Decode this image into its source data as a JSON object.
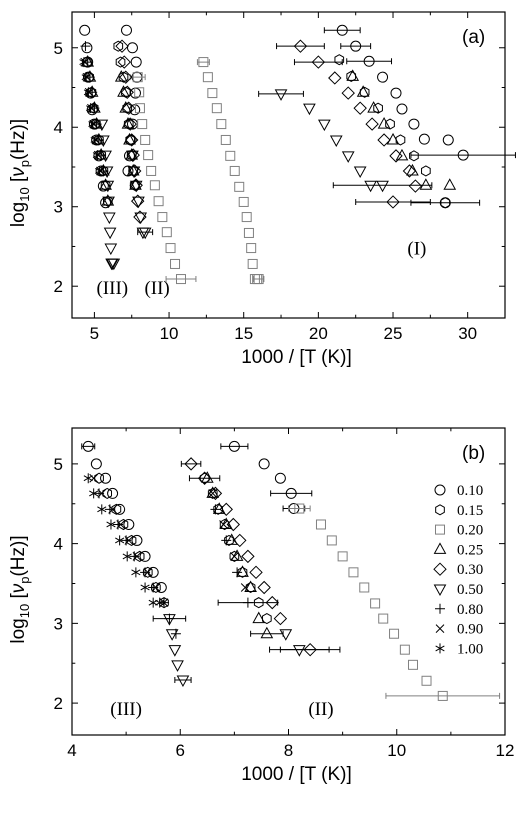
{
  "chart_data": [
    {
      "panel": "(a)",
      "type": "scatter",
      "xlabel": "1000 / [T (K)]",
      "ylabel_main": "log",
      "ylabel_sub": "10",
      "ylabel_rest": " [",
      "ylabel_nu": "ν",
      "ylabel_nu_sub": "p",
      "ylabel_unit": "(Hz)]",
      "xlim": [
        3.5,
        32.5
      ],
      "ylim": [
        1.6,
        5.45
      ],
      "xticks": [
        5,
        10,
        15,
        20,
        25,
        30
      ],
      "yticks": [
        2,
        3,
        4,
        5
      ],
      "annotations": [
        {
          "text": "(III)",
          "x": 6.2,
          "y": 1.9
        },
        {
          "text": "(II)",
          "x": 9.2,
          "y": 1.9
        },
        {
          "text": "(I)",
          "x": 26.6,
          "y": 2.4
        }
      ],
      "series": [
        {
          "marker": "circle",
          "color": "#000000",
          "x": [
            4.35,
            4.5,
            4.55,
            4.6,
            4.75,
            4.85,
            5.0,
            5.15,
            5.3,
            5.45,
            5.6,
            5.75
          ],
          "y": [
            5.22,
            5.0,
            4.82,
            4.63,
            4.43,
            4.22,
            4.04,
            3.84,
            3.64,
            3.45,
            3.26,
            3.05
          ]
        },
        {
          "marker": "circle",
          "color": "#000000",
          "x": [
            7.15,
            7.55,
            7.8,
            7.85,
            7.75,
            7.7,
            7.55,
            7.45,
            7.35,
            7.25
          ],
          "y": [
            5.22,
            5.0,
            4.82,
            4.63,
            4.43,
            4.22,
            4.04,
            3.84,
            3.64,
            3.45
          ]
        },
        {
          "marker": "circle",
          "color": "#000000",
          "x": [
            21.6,
            22.5,
            23.4,
            24.3,
            25.2,
            25.6,
            26.4,
            27.1,
            28.7,
            29.7,
            28.5
          ],
          "y": [
            5.22,
            5.02,
            4.83,
            4.63,
            4.43,
            4.23,
            4.04,
            3.85,
            3.84,
            3.65,
            3.05
          ],
          "xerr": [
            1.2,
            1.0,
            1.5,
            0,
            0,
            0,
            0,
            0,
            0,
            3.5,
            2.3
          ]
        },
        {
          "marker": "hexagon",
          "color": "#000000",
          "x": [
            4.5,
            4.65,
            4.8,
            4.95,
            5.1,
            5.3,
            5.45,
            5.6,
            5.75,
            5.9,
            6.6,
            6.75,
            6.95,
            7.1,
            7.2,
            7.3,
            7.4,
            7.5,
            7.6,
            7.7,
            21.4,
            22.2,
            23.1,
            24.0,
            24.8,
            25.5,
            26.4,
            27.2,
            28.5
          ],
          "y": [
            4.82,
            4.63,
            4.44,
            4.24,
            4.04,
            3.84,
            3.65,
            3.45,
            3.27,
            3.07,
            5.02,
            4.82,
            4.63,
            4.44,
            4.24,
            4.04,
            3.84,
            3.65,
            3.45,
            3.27,
            4.85,
            4.64,
            4.44,
            4.24,
            4.04,
            3.84,
            3.64,
            3.45,
            3.05
          ]
        },
        {
          "marker": "square",
          "color": "#808080",
          "x": [
            7.9,
            8.0,
            8.05,
            8.2,
            8.4,
            8.6,
            8.8,
            9.05,
            9.3,
            9.55,
            9.85,
            10.1,
            10.4,
            10.8,
            12.3,
            12.6,
            12.9,
            13.2,
            13.5,
            13.8,
            14.1,
            14.4,
            14.7,
            15.0,
            15.2,
            15.35,
            15.5,
            15.6,
            15.75,
            15.9,
            16.0
          ],
          "y": [
            4.63,
            4.44,
            4.24,
            4.04,
            3.84,
            3.65,
            3.45,
            3.27,
            3.07,
            2.87,
            2.68,
            2.48,
            2.28,
            2.09,
            4.82,
            4.63,
            4.43,
            4.24,
            4.04,
            3.84,
            3.64,
            3.45,
            3.25,
            3.06,
            2.87,
            2.67,
            2.48,
            2.28,
            2.09,
            2.09,
            2.09
          ],
          "xerr": [
            0.5,
            0,
            0,
            0,
            0,
            0,
            0,
            0,
            0,
            0,
            0,
            0,
            0,
            1.0,
            0.4,
            0,
            0,
            0,
            0,
            0,
            0,
            0,
            0,
            0,
            0,
            0,
            0,
            0,
            0,
            0,
            0.35
          ]
        },
        {
          "marker": "triangle",
          "color": "#000000",
          "x": [
            4.55,
            4.7,
            4.85,
            5.0,
            5.15,
            5.3,
            5.45,
            5.6,
            5.75,
            5.9,
            6.8,
            6.95,
            7.1,
            7.25,
            7.35,
            7.5,
            7.6,
            7.75,
            22.3,
            23.0,
            23.7,
            24.4,
            25.0,
            25.6,
            26.3,
            27.2,
            28.8
          ],
          "y": [
            4.82,
            4.63,
            4.44,
            4.24,
            4.04,
            3.84,
            3.65,
            3.45,
            3.27,
            3.07,
            4.63,
            4.44,
            4.24,
            4.04,
            3.84,
            3.65,
            3.45,
            3.27,
            4.64,
            4.44,
            4.24,
            4.04,
            3.84,
            3.64,
            3.45,
            3.27,
            3.27
          ]
        },
        {
          "marker": "diamond",
          "color": "#000000",
          "x": [
            6.85,
            7.0,
            7.1,
            7.2,
            7.3,
            7.4,
            7.5,
            7.6,
            7.7,
            7.8,
            7.9,
            8.05,
            18.8,
            20.0,
            21.1,
            22.0,
            22.8,
            23.6,
            24.4,
            25.2,
            26.1,
            26.5,
            25.0
          ],
          "y": [
            5.02,
            4.82,
            4.63,
            4.44,
            4.24,
            4.04,
            3.84,
            3.65,
            3.45,
            3.27,
            3.07,
            2.87,
            5.02,
            4.82,
            4.62,
            4.43,
            4.24,
            4.04,
            3.84,
            3.64,
            3.45,
            3.26,
            3.06
          ],
          "xerr": [
            0,
            0,
            0,
            0,
            0,
            0,
            0,
            0,
            0,
            0,
            0,
            0,
            1.6,
            1.6,
            0,
            0,
            0,
            0,
            0,
            0,
            0,
            0,
            2.5
          ]
        },
        {
          "marker": "triangle-down",
          "color": "#000000",
          "x": [
            5.5,
            5.6,
            5.75,
            5.85,
            5.9,
            5.95,
            6.0,
            6.05,
            6.1,
            6.15,
            6.2,
            6.3,
            7.55,
            7.65,
            7.8,
            7.95,
            8.1,
            8.25,
            8.4,
            17.5,
            19.4,
            20.4,
            21.2,
            22.0,
            22.8,
            23.5,
            24.3
          ],
          "y": [
            4.04,
            3.84,
            3.65,
            3.45,
            3.27,
            3.07,
            2.87,
            2.68,
            2.48,
            2.29,
            2.29,
            2.29,
            3.65,
            3.45,
            3.27,
            3.07,
            2.87,
            2.68,
            2.68,
            4.42,
            4.24,
            4.04,
            3.84,
            3.64,
            3.45,
            3.27,
            3.27
          ],
          "xerr": [
            0,
            0,
            0,
            0,
            0,
            0,
            0,
            0,
            0,
            0,
            0,
            0,
            0,
            0,
            0,
            0,
            0,
            0,
            0.5,
            1.5,
            0,
            0,
            0,
            0,
            0,
            0,
            3.3
          ]
        },
        {
          "marker": "plus",
          "color": "#000000",
          "x": [
            4.4,
            4.55,
            4.7,
            4.85,
            5.0,
            5.15,
            5.3,
            5.45,
            5.6
          ],
          "y": [
            5.02,
            4.82,
            4.63,
            4.44,
            4.24,
            4.04,
            3.84,
            3.65,
            3.45
          ]
        },
        {
          "marker": "cross",
          "color": "#000000",
          "x": [
            4.35,
            4.5,
            4.65,
            4.8,
            4.95,
            5.1,
            5.25,
            5.4
          ],
          "y": [
            4.82,
            4.63,
            4.44,
            4.24,
            4.04,
            3.84,
            3.65,
            3.45
          ]
        },
        {
          "marker": "asterisk",
          "color": "#000000",
          "x": [
            4.3,
            4.45,
            4.6,
            4.75,
            4.9,
            5.05,
            5.2,
            5.35
          ],
          "y": [
            4.82,
            4.63,
            4.44,
            4.24,
            4.04,
            3.84,
            3.65,
            3.45
          ]
        }
      ]
    },
    {
      "panel": "(b)",
      "type": "scatter",
      "xlabel": "1000 / [T (K)]",
      "ylabel_main": "log",
      "ylabel_sub": "10",
      "ylabel_rest": " [",
      "ylabel_nu": "ν",
      "ylabel_nu_sub": "p",
      "ylabel_unit": "(Hz)]",
      "xlim": [
        4,
        12
      ],
      "ylim": [
        1.6,
        5.45
      ],
      "xticks": [
        4,
        6,
        8,
        10,
        12
      ],
      "yticks": [
        2,
        3,
        4,
        5
      ],
      "annotations": [
        {
          "text": "(III)",
          "x": 5.0,
          "y": 1.85
        },
        {
          "text": "(II)",
          "x": 8.6,
          "y": 1.85
        }
      ],
      "legend": {
        "placement": "right",
        "entries": [
          {
            "marker": "circle",
            "label": "0.10",
            "color": "#000000"
          },
          {
            "marker": "hexagon",
            "label": "0.15",
            "color": "#000000"
          },
          {
            "marker": "square",
            "label": "0.20",
            "color": "#808080"
          },
          {
            "marker": "triangle",
            "label": "0.25",
            "color": "#000000"
          },
          {
            "marker": "diamond",
            "label": "0.30",
            "color": "#000000"
          },
          {
            "marker": "triangle-down",
            "label": "0.50",
            "color": "#000000"
          },
          {
            "marker": "plus",
            "label": "0.80",
            "color": "#000000"
          },
          {
            "marker": "cross",
            "label": "0.90",
            "color": "#000000"
          },
          {
            "marker": "asterisk",
            "label": "1.00",
            "color": "#000000"
          }
        ]
      },
      "series": [
        {
          "marker": "circle",
          "color": "#000000",
          "x": [
            4.3,
            4.45,
            4.62,
            4.75,
            4.88,
            5.05,
            5.2,
            5.35,
            5.5,
            5.65,
            7.0,
            7.55,
            7.85,
            8.05,
            8.1
          ],
          "y": [
            5.22,
            5.0,
            4.82,
            4.63,
            4.43,
            4.24,
            4.04,
            3.84,
            3.64,
            3.45,
            5.22,
            5.0,
            4.82,
            4.63,
            4.44
          ],
          "xerr": [
            0.12,
            0,
            0,
            0,
            0,
            0,
            0,
            0,
            0,
            0,
            0.25,
            0,
            0,
            0.38,
            0.2
          ]
        },
        {
          "marker": "hexagon",
          "color": "#000000",
          "x": [
            4.5,
            4.65,
            4.82,
            4.95,
            5.1,
            5.25,
            5.4,
            5.55,
            5.7,
            6.45,
            6.6,
            6.7,
            6.82,
            6.9,
            7.0,
            7.15,
            7.3,
            7.45,
            7.6
          ],
          "y": [
            4.82,
            4.63,
            4.43,
            4.24,
            4.04,
            3.84,
            3.64,
            3.45,
            3.26,
            4.82,
            4.63,
            4.43,
            4.24,
            4.04,
            3.84,
            3.64,
            3.45,
            3.26,
            3.06
          ]
        },
        {
          "marker": "square",
          "color": "#808080",
          "x": [
            8.2,
            8.6,
            8.8,
            9.0,
            9.2,
            9.4,
            9.6,
            9.75,
            9.95,
            10.15,
            10.3,
            10.55,
            10.85
          ],
          "y": [
            4.44,
            4.24,
            4.04,
            3.84,
            3.64,
            3.45,
            3.25,
            3.06,
            2.87,
            2.67,
            2.48,
            2.28,
            2.09
          ],
          "xerr": [
            0.2,
            0,
            0,
            0,
            0,
            0,
            0,
            0,
            0,
            0,
            0,
            0,
            1.05
          ]
        },
        {
          "marker": "triangle",
          "color": "#000000",
          "x": [
            6.5,
            6.6,
            6.72,
            6.85,
            6.95,
            7.05,
            7.15,
            7.3,
            7.45,
            7.6
          ],
          "y": [
            4.82,
            4.63,
            4.43,
            4.24,
            4.04,
            3.84,
            3.64,
            3.45,
            3.06,
            2.87
          ],
          "xerr": [
            0,
            0,
            0,
            0,
            0,
            0,
            0,
            0,
            0,
            0.3
          ]
        },
        {
          "marker": "diamond",
          "color": "#000000",
          "x": [
            6.2,
            6.45,
            6.65,
            6.85,
            6.98,
            7.1,
            7.25,
            7.4,
            7.55,
            7.7,
            7.85,
            8.4
          ],
          "y": [
            5.0,
            4.82,
            4.63,
            4.43,
            4.24,
            4.04,
            3.84,
            3.64,
            3.45,
            3.26,
            3.06,
            2.67
          ],
          "xerr": [
            0.18,
            0.28,
            0,
            0,
            0,
            0,
            0,
            0,
            0,
            0,
            0,
            0.55
          ]
        },
        {
          "marker": "triangle-down",
          "color": "#000000",
          "x": [
            5.8,
            5.85,
            5.9,
            5.95,
            6.05,
            7.95,
            8.2
          ],
          "y": [
            3.06,
            2.87,
            2.67,
            2.48,
            2.29,
            2.87,
            2.67
          ],
          "xerr": [
            0,
            0,
            0,
            0,
            0.15,
            0,
            0.55
          ]
        },
        {
          "marker": "plus",
          "color": "#000000",
          "x": [
            4.5,
            4.7,
            4.85,
            5.0,
            5.15,
            5.35,
            5.5,
            5.7,
            5.8,
            5.92,
            6.65,
            6.85,
            7.05,
            7.25
          ],
          "y": [
            4.63,
            4.43,
            4.24,
            4.04,
            3.84,
            3.64,
            3.45,
            3.26,
            3.06,
            2.87,
            4.43,
            4.04,
            3.64,
            3.26
          ],
          "xerr": [
            0,
            0,
            0,
            0,
            0,
            0,
            0,
            0,
            0.3,
            0,
            0,
            0,
            0,
            0.55
          ]
        },
        {
          "marker": "cross",
          "color": "#000000",
          "x": [
            4.4,
            4.55,
            4.75,
            4.9,
            5.05,
            5.2,
            5.4,
            5.55,
            5.7,
            6.6,
            6.8,
            7.0,
            7.2
          ],
          "y": [
            4.82,
            4.63,
            4.43,
            4.24,
            4.04,
            3.84,
            3.64,
            3.45,
            3.26,
            4.63,
            4.24,
            3.84,
            3.45
          ]
        },
        {
          "marker": "asterisk",
          "color": "#000000",
          "x": [
            4.3,
            4.4,
            4.55,
            4.72,
            4.88,
            5.02,
            5.18,
            5.35,
            5.5,
            5.62
          ],
          "y": [
            4.82,
            4.63,
            4.43,
            4.24,
            4.04,
            3.84,
            3.64,
            3.45,
            3.26,
            3.26
          ]
        }
      ]
    }
  ]
}
